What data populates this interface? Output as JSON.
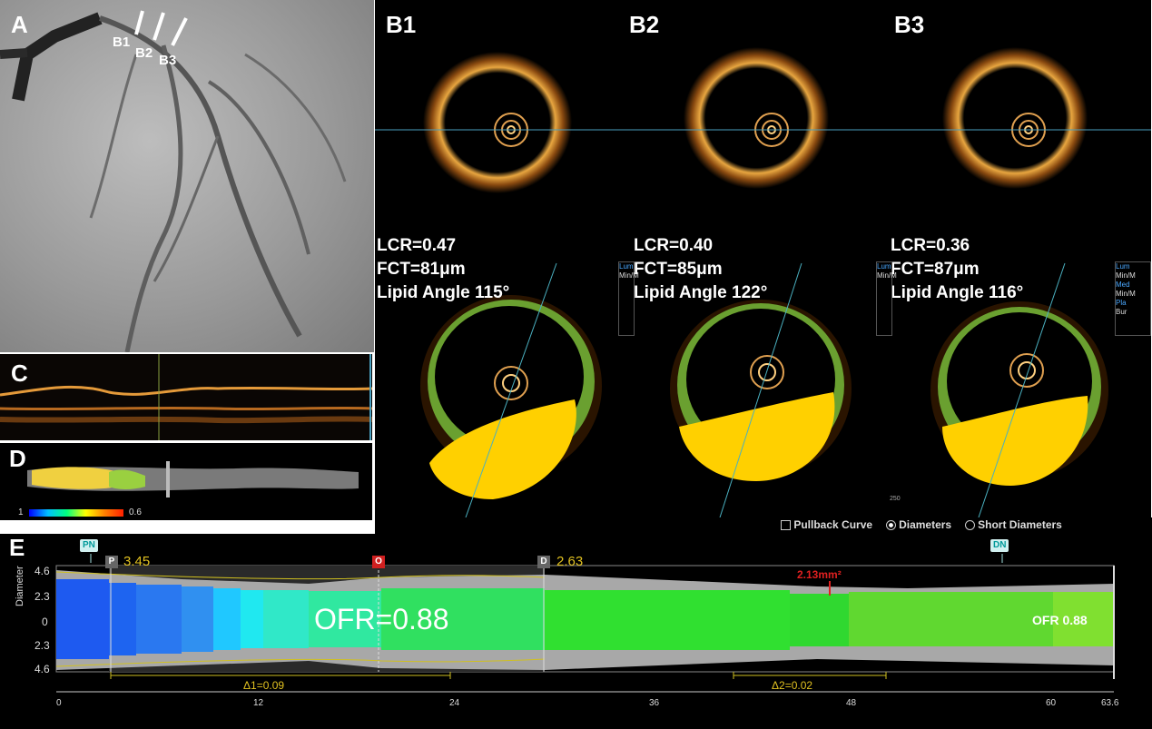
{
  "panel_a": {
    "label": "A",
    "section_labels": [
      "B1",
      "B2",
      "B3"
    ]
  },
  "panel_b": {
    "frames": [
      {
        "label": "B1",
        "lcr": "LCR=0.47",
        "fct": "FCT=81μm",
        "lipid_angle": "Lipid Angle 115°"
      },
      {
        "label": "B2",
        "lcr": "LCR=0.40",
        "fct": "FCT=85μm",
        "lipid_angle": "Lipid Angle 122°"
      },
      {
        "label": "B3",
        "lcr": "LCR=0.36",
        "fct": "FCT=87μm",
        "lipid_angle": "Lipid Angle 116°"
      }
    ],
    "legend_partial": [
      "Lum",
      "Min/M",
      "Med",
      "Min/M",
      "Pla",
      "Bur"
    ],
    "scale_text": "250"
  },
  "panel_c": {
    "label": "C"
  },
  "panel_d": {
    "label": "D",
    "scale_min": "1",
    "scale_max": "0.6"
  },
  "panel_e": {
    "label": "E",
    "options": [
      {
        "label": "Pullback Curve",
        "icon": "checkbox-icon"
      },
      {
        "label": "Diameters",
        "icon": "radio-selected-icon"
      },
      {
        "label": "Short Diameters",
        "icon": "radio-icon"
      }
    ],
    "proximal_flag": "PN",
    "distal_flag": "DN",
    "marker_p": {
      "letter": "P",
      "value": "3.45"
    },
    "marker_o": {
      "letter": "O"
    },
    "marker_d": {
      "letter": "D",
      "value": "2.63"
    },
    "area_annotation": "2.13mm²",
    "ofr_main": "OFR=0.88",
    "ofr_end": "OFR 0.88",
    "y_axis_label": "Diameter",
    "y_ticks": [
      "4.6",
      "2.3",
      "0",
      "2.3",
      "4.6"
    ],
    "x_ticks": [
      "0",
      "12",
      "24",
      "36",
      "48",
      "60",
      "63.6"
    ],
    "delta1": "Δ1=0.09",
    "delta2": "Δ2=0.02"
  }
}
